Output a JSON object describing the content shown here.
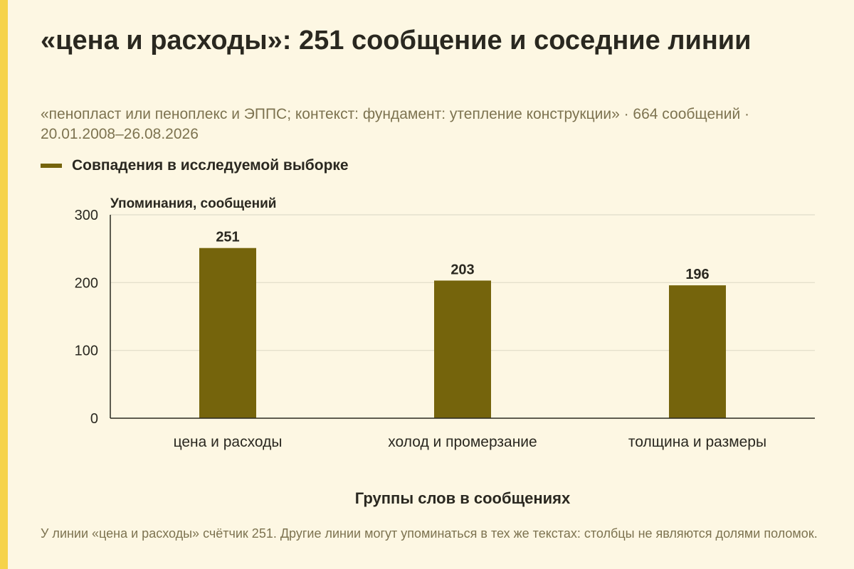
{
  "header": {
    "title": "«цена и расходы»: 251 сообщение и соседние линии",
    "subtitle": "«пенопласт или пеноплекс и ЭППС; контекст: фундамент: утепление конструкции» · 664 сообщений · 20.01.2008–26.08.2026"
  },
  "legend": {
    "label": "Совпадения в исследуемой выборке"
  },
  "footer": {
    "note": "У линии «цена и расходы» счётчик 251. Другие линии могут упоминаться в тех же текстах: столбцы не являются долями поломок."
  },
  "colors": {
    "bar": "#75640c",
    "accent_stripe": "#f6d34a",
    "grid": "#e0dcc9",
    "axis": "#2a2820"
  },
  "chart_data": {
    "type": "bar",
    "categories": [
      "цена и расходы",
      "холод и промерзание",
      "толщина и размеры"
    ],
    "series": [
      {
        "name": "Совпадения в исследуемой выборке",
        "values": [
          251,
          203,
          196
        ]
      }
    ],
    "ylabel": "Упоминания, сообщений",
    "xlabel": "Группы слов в сообщениях",
    "ylim": [
      0,
      300
    ],
    "yticks": [
      0,
      100,
      200,
      300
    ],
    "grid": true,
    "legend_position": "top-left",
    "data_labels": true
  }
}
